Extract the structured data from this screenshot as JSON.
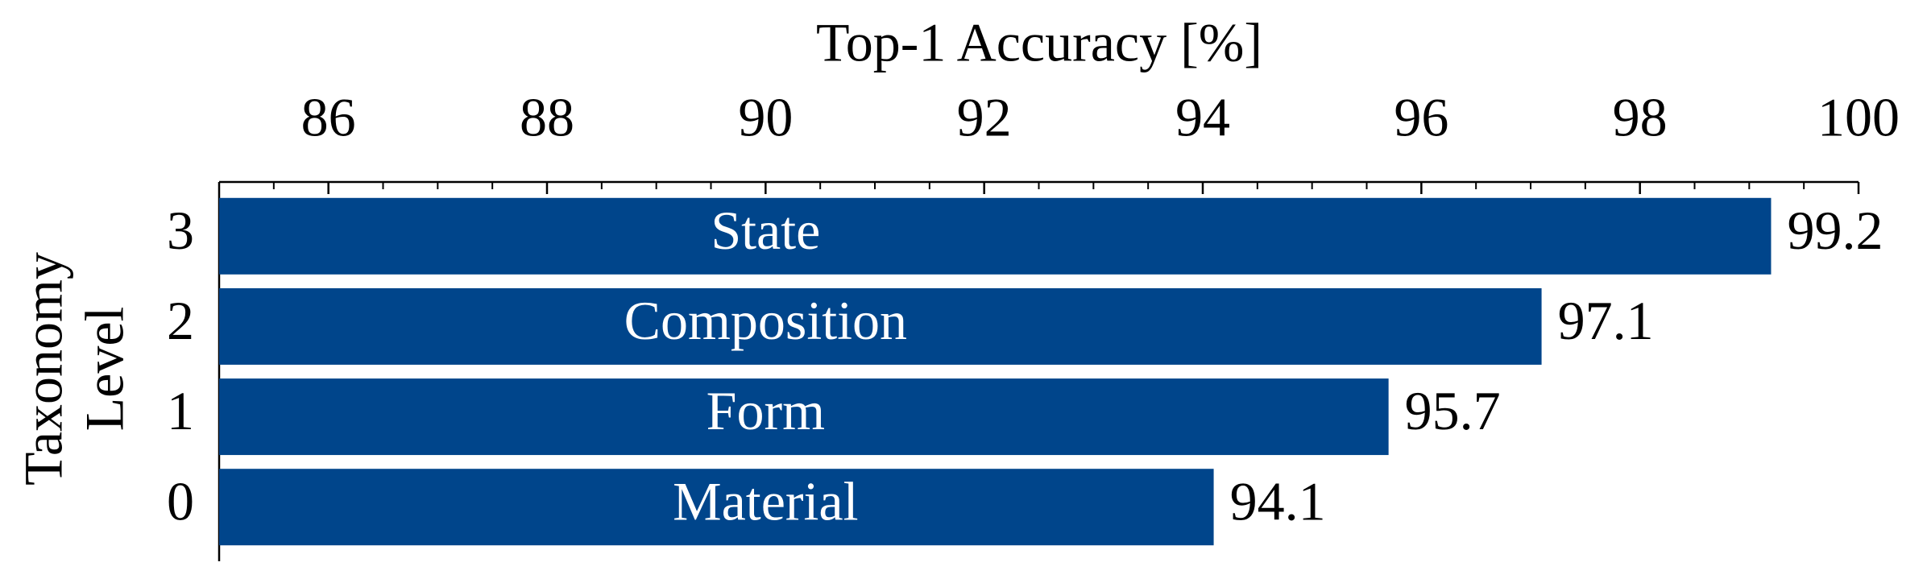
{
  "chart_data": {
    "type": "barh",
    "xlabel": "Top-1 Accuracy [%]",
    "ylabel": [
      "Taxonomy",
      "Level"
    ],
    "categories": [
      "0",
      "1",
      "2",
      "3"
    ],
    "values": [
      94.1,
      95.7,
      97.1,
      99.2
    ],
    "bar_labels": [
      "Material",
      "Form",
      "Composition",
      "State"
    ],
    "color": "#00458b",
    "xlim": [
      85,
      100
    ],
    "xticks": [
      86,
      88,
      90,
      92,
      94,
      96,
      98,
      100
    ],
    "xticks_minor": [
      85.5,
      86.5,
      87,
      87.5,
      88.5,
      89,
      89.5,
      90.5,
      91,
      91.5,
      92.5,
      93,
      93.5,
      94.5,
      95,
      95.5,
      96.5,
      97,
      97.5,
      98.5,
      99,
      99.5
    ],
    "grid": false
  }
}
